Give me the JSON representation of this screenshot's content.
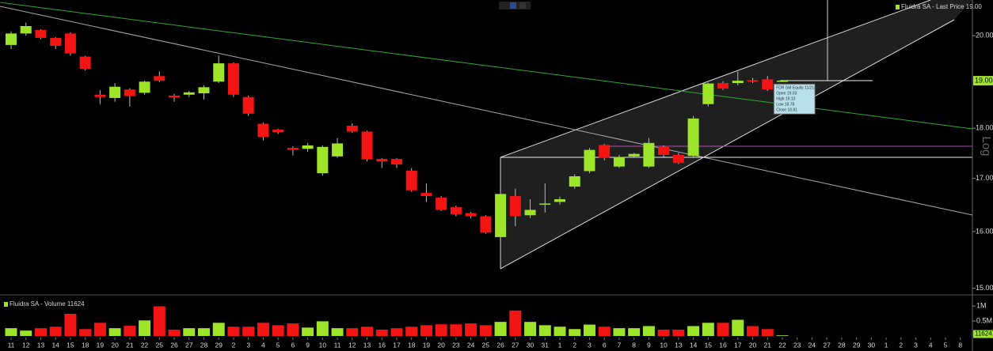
{
  "chart_data": [
    {
      "type": "candlestick",
      "legend": "Fluidra SA - Last Price 19.00",
      "categories": [
        "11",
        "12",
        "13",
        "14",
        "15",
        "18",
        "19",
        "20",
        "21",
        "22",
        "25",
        "26",
        "27",
        "28",
        "29",
        "2",
        "3",
        "4",
        "5",
        "6",
        "9",
        "10",
        "11",
        "12",
        "13",
        "16",
        "17",
        "18",
        "19",
        "20",
        "23",
        "24",
        "25",
        "26",
        "27",
        "30",
        "31",
        "1",
        "2",
        "3",
        "6",
        "7",
        "8",
        "9",
        "10",
        "13",
        "14",
        "15",
        "16",
        "17",
        "20",
        "21",
        "22",
        "23",
        "24",
        "27",
        "28",
        "29",
        "30",
        "1",
        "2",
        "3",
        "4",
        "5",
        "8"
      ],
      "open": [
        19.79,
        20.05,
        20.13,
        19.95,
        20.05,
        19.53,
        18.7,
        18.63,
        18.81,
        18.74,
        19.1,
        18.68,
        18.7,
        18.73,
        18.98,
        19.38,
        18.65,
        18.09,
        17.97,
        17.6,
        17.58,
        17.1,
        17.43,
        18.05,
        17.93,
        17.38,
        17.38,
        17.15,
        16.72,
        16.63,
        16.45,
        16.34,
        16.28,
        15.9,
        16.66,
        16.3,
        16.5,
        16.55,
        16.84,
        17.14,
        17.66,
        17.23,
        17.43,
        17.23,
        17.62,
        17.46,
        17.44,
        18.5,
        18.95,
        18.95,
        19.01,
        19.03,
        18.98,
        null,
        null,
        null,
        null,
        null,
        null,
        null,
        null,
        null,
        null,
        null,
        null
      ],
      "high": [
        20.1,
        20.3,
        20.15,
        19.97,
        20.08,
        19.55,
        18.8,
        18.95,
        18.84,
        19.0,
        19.2,
        18.72,
        18.78,
        18.9,
        19.55,
        19.4,
        18.68,
        18.12,
        17.99,
        17.63,
        17.7,
        17.65,
        17.8,
        18.1,
        17.95,
        17.4,
        17.4,
        17.2,
        16.9,
        16.66,
        16.48,
        16.36,
        16.3,
        16.75,
        16.8,
        16.6,
        16.9,
        16.65,
        17.08,
        17.6,
        17.68,
        17.46,
        17.5,
        17.8,
        17.65,
        17.5,
        18.25,
        18.96,
        18.99,
        19.2,
        19.06,
        19.1,
        19.02,
        null,
        null,
        null,
        null,
        null,
        null,
        null,
        null,
        null,
        null,
        null,
        null
      ],
      "low": [
        19.7,
        20.0,
        19.92,
        19.7,
        19.55,
        19.22,
        18.5,
        18.55,
        18.45,
        18.7,
        18.97,
        18.55,
        18.65,
        18.6,
        18.95,
        18.65,
        18.25,
        17.75,
        17.88,
        17.45,
        17.52,
        17.05,
        17.4,
        17.9,
        17.33,
        17.2,
        17.2,
        16.74,
        16.55,
        16.38,
        16.28,
        16.24,
        15.96,
        15.88,
        16.1,
        16.25,
        16.35,
        16.5,
        16.8,
        17.1,
        17.35,
        17.2,
        17.4,
        17.2,
        17.42,
        17.28,
        17.4,
        18.45,
        18.8,
        18.9,
        18.95,
        18.78,
        18.97,
        null,
        null,
        null,
        null,
        null,
        null,
        null,
        null,
        null,
        null,
        null,
        null
      ],
      "close": [
        20.05,
        20.22,
        19.95,
        19.77,
        19.6,
        19.26,
        18.65,
        18.87,
        18.67,
        18.98,
        19.0,
        18.64,
        18.75,
        18.86,
        19.38,
        18.7,
        18.3,
        17.82,
        17.92,
        17.56,
        17.65,
        17.62,
        17.69,
        17.93,
        17.37,
        17.33,
        17.27,
        16.77,
        16.66,
        16.4,
        16.32,
        16.28,
        15.98,
        16.7,
        16.28,
        16.4,
        16.52,
        16.6,
        17.04,
        17.56,
        17.4,
        17.42,
        17.48,
        17.7,
        17.46,
        17.3,
        18.2,
        18.94,
        18.83,
        19.0,
        18.98,
        18.81,
        19.0,
        null,
        null,
        null,
        null,
        null,
        null,
        null,
        null,
        null,
        null,
        null,
        null
      ],
      "up_color": "#9ee52a",
      "down_color": "#f31414",
      "log_scale": true,
      "axis_label": "Log",
      "ylim": [
        14.9,
        20.83
      ],
      "yticks": [
        {
          "value": 15,
          "label": "15.00"
        },
        {
          "value": 16,
          "label": "16.00"
        },
        {
          "value": 17,
          "label": "17.00"
        },
        {
          "value": 18,
          "label": "18.00"
        },
        {
          "value": 20,
          "label": "20.00"
        }
      ],
      "last_price_label": "19.00",
      "tooltip": [
        "FDR SM Equity 11/21/25",
        "Open 19.03",
        "High 19.10",
        "Low 18.78",
        "Close 18.81"
      ]
    },
    {
      "type": "volume-bar",
      "legend": "Fluidra SA - Volume 11624",
      "values": [
        260000,
        180000,
        260000,
        310000,
        740000,
        230000,
        440000,
        260000,
        340000,
        520000,
        990000,
        210000,
        260000,
        260000,
        440000,
        310000,
        310000,
        440000,
        360000,
        420000,
        280000,
        490000,
        260000,
        260000,
        310000,
        210000,
        260000,
        310000,
        360000,
        390000,
        390000,
        420000,
        360000,
        470000,
        850000,
        470000,
        360000,
        310000,
        230000,
        380000,
        310000,
        260000,
        260000,
        330000,
        210000,
        210000,
        330000,
        440000,
        440000,
        540000,
        330000,
        230000,
        11624,
        null,
        null,
        null,
        null,
        null,
        null,
        null,
        null,
        null,
        null,
        null,
        null
      ],
      "ylim": [
        0,
        1240000
      ],
      "yticks": [
        {
          "value": 500000,
          "label": "0.5M"
        },
        {
          "value": 1000000,
          "label": "1M"
        }
      ]
    }
  ]
}
